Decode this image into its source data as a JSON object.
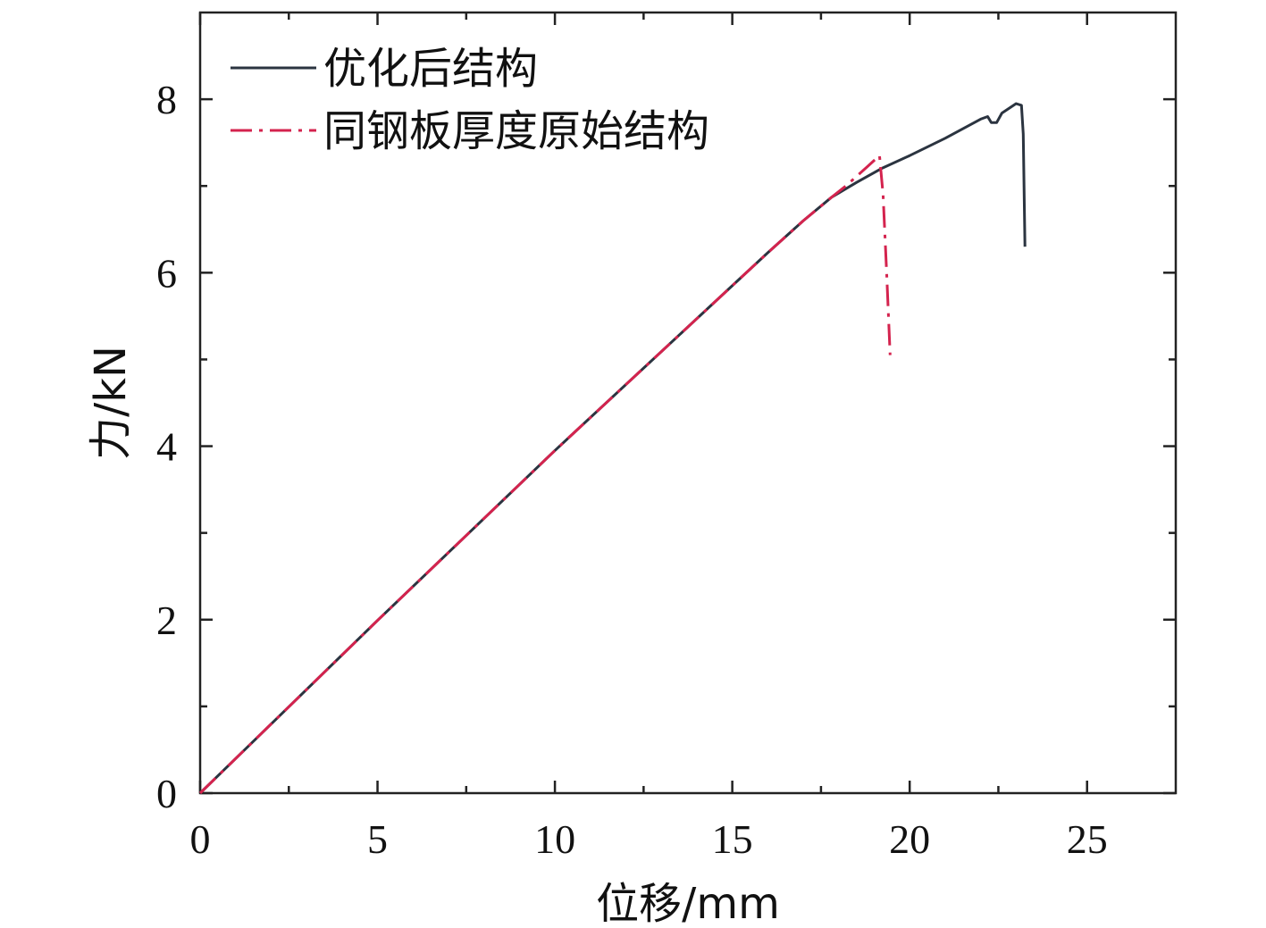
{
  "chart_data": {
    "type": "line",
    "xlabel": "位移/mm",
    "ylabel": "力/kN",
    "xlim": [
      0,
      27.5
    ],
    "ylim": [
      0,
      9
    ],
    "x_ticks": [
      0,
      5,
      10,
      15,
      20,
      25
    ],
    "x_tick_labels": [
      "0",
      "5",
      "10",
      "15",
      "20",
      "25"
    ],
    "x_minor_step": 2.5,
    "y_ticks": [
      0,
      2,
      4,
      6,
      8
    ],
    "y_tick_labels": [
      "0",
      "2",
      "4",
      "6",
      "8"
    ],
    "y_minor_step": 1,
    "grid": false,
    "legend_position": "top-left",
    "series": [
      {
        "name": "优化后结构",
        "color": "#2b3440",
        "dash": "solid",
        "points": [
          [
            0,
            0
          ],
          [
            5,
            1.99
          ],
          [
            10,
            3.95
          ],
          [
            15,
            5.85
          ],
          [
            16,
            6.23
          ],
          [
            17,
            6.6
          ],
          [
            17.8,
            6.87
          ],
          [
            18.5,
            7.04
          ],
          [
            19.2,
            7.2
          ],
          [
            20,
            7.35
          ],
          [
            21,
            7.55
          ],
          [
            22,
            7.77
          ],
          [
            22.2,
            7.8
          ],
          [
            22.3,
            7.73
          ],
          [
            22.45,
            7.73
          ],
          [
            22.6,
            7.84
          ],
          [
            23,
            7.95
          ],
          [
            23.15,
            7.93
          ],
          [
            23.2,
            7.6
          ],
          [
            23.25,
            6.3
          ]
        ]
      },
      {
        "name": "同钢板厚度原始结构",
        "color": "#d4234e",
        "dash": "dashdot",
        "points": [
          [
            0,
            0
          ],
          [
            5,
            1.99
          ],
          [
            10,
            3.95
          ],
          [
            15,
            5.85
          ],
          [
            16,
            6.23
          ],
          [
            17,
            6.6
          ],
          [
            17.8,
            6.87
          ],
          [
            18.2,
            7.0
          ],
          [
            18.8,
            7.22
          ],
          [
            19.15,
            7.35
          ],
          [
            19.25,
            6.9
          ],
          [
            19.35,
            6.0
          ],
          [
            19.45,
            5.05
          ]
        ]
      }
    ]
  }
}
